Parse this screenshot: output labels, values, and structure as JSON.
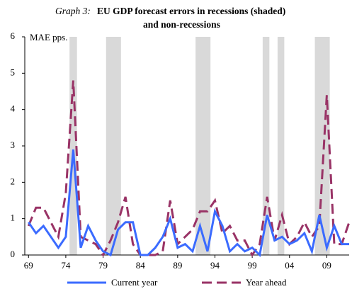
{
  "chart_data": {
    "type": "line",
    "title_label": "Graph 3:",
    "title": [
      "EU GDP forecast errors in recessions (shaded)",
      "and  non-recessions"
    ],
    "y_label": "MAE pps.",
    "x": [
      1969,
      1970,
      1971,
      1972,
      1973,
      1974,
      1975,
      1976,
      1977,
      1978,
      1979,
      1980,
      1981,
      1982,
      1983,
      1984,
      1985,
      1986,
      1987,
      1988,
      1989,
      1990,
      1991,
      1992,
      1993,
      1994,
      1995,
      1996,
      1997,
      1998,
      1999,
      2000,
      2001,
      2002,
      2003,
      2004,
      2005,
      2006,
      2007,
      2008,
      2009,
      2010,
      2011,
      2012
    ],
    "series": [
      {
        "name": "Current year",
        "color": "#3b6bff",
        "dash": false,
        "values": [
          0.9,
          0.6,
          0.8,
          0.5,
          0.2,
          0.5,
          2.9,
          0.2,
          0.8,
          0.4,
          0.1,
          0.0,
          0.7,
          0.9,
          0.9,
          0.0,
          0.0,
          0.2,
          0.5,
          1.0,
          0.2,
          0.3,
          0.1,
          0.8,
          0.1,
          1.2,
          0.8,
          0.1,
          0.3,
          0.1,
          0.2,
          0.0,
          1.1,
          0.4,
          0.5,
          0.3,
          0.4,
          0.6,
          0.1,
          1.1,
          0.2,
          0.8,
          0.3,
          0.3
        ]
      },
      {
        "name": "Year ahead",
        "color": "#993366",
        "dash": true,
        "values": [
          0.8,
          1.3,
          1.3,
          0.9,
          0.5,
          1.7,
          4.8,
          0.5,
          0.4,
          0.3,
          0.0,
          0.4,
          0.9,
          1.6,
          0.3,
          0.0,
          0.0,
          0.0,
          0.1,
          1.5,
          0.3,
          0.5,
          0.7,
          1.2,
          1.2,
          1.5,
          0.6,
          0.8,
          0.4,
          0.4,
          0.0,
          0.3,
          1.6,
          0.4,
          1.1,
          0.3,
          0.5,
          0.9,
          0.5,
          0.8,
          4.4,
          0.3,
          0.3,
          0.9
        ]
      }
    ],
    "shaded_periods": [
      [
        1974.5,
        1975.5
      ],
      [
        1979.4,
        1981.4
      ],
      [
        1991.4,
        1993.4
      ],
      [
        2000.4,
        2001.3
      ],
      [
        2002.4,
        2003.3
      ],
      [
        2007.4,
        2009.4
      ]
    ],
    "shade_color": "#d9d9d9",
    "xlim": [
      1968.5,
      2012
    ],
    "ylim": [
      0,
      6
    ],
    "xticks": [
      {
        "value": 1969,
        "label": "69"
      },
      {
        "value": 1974,
        "label": "74"
      },
      {
        "value": 1979,
        "label": "79"
      },
      {
        "value": 1984,
        "label": "84"
      },
      {
        "value": 1989,
        "label": "89"
      },
      {
        "value": 1994,
        "label": "94"
      },
      {
        "value": 1999,
        "label": "99"
      },
      {
        "value": 2004,
        "label": "04"
      },
      {
        "value": 2009,
        "label": "09"
      }
    ],
    "yticks": [
      0,
      1,
      2,
      3,
      4,
      5,
      6
    ],
    "legend": "bottom"
  }
}
